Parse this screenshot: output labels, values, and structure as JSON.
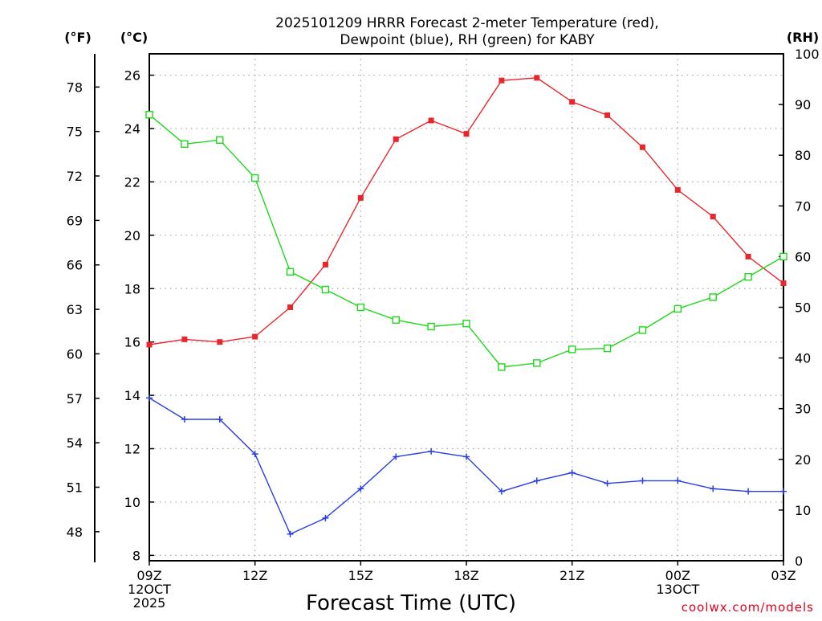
{
  "chart_data": {
    "type": "line",
    "title_line1": "2025101209 HRRR Forecast 2-meter Temperature (red),",
    "title_line2": "Dewpoint (blue), RH (green) for KABY",
    "unit_labels": {
      "fahrenheit": "(°F)",
      "celsius": "(°C)",
      "rh": "(RH)"
    },
    "xlabel": "Forecast Time (UTC)",
    "credit": "coolwx.com/models",
    "x": [
      0,
      1,
      2,
      3,
      4,
      5,
      6,
      7,
      8,
      9,
      10,
      11,
      12,
      13,
      14,
      15,
      16,
      17,
      18
    ],
    "xlim": [
      0,
      18
    ],
    "x_ticks": [
      {
        "x": 0,
        "lines": [
          "09Z",
          "12OCT",
          "2025"
        ]
      },
      {
        "x": 3,
        "lines": [
          "12Z"
        ]
      },
      {
        "x": 6,
        "lines": [
          "15Z"
        ]
      },
      {
        "x": 9,
        "lines": [
          "18Z"
        ]
      },
      {
        "x": 12,
        "lines": [
          "21Z"
        ]
      },
      {
        "x": 15,
        "lines": [
          "00Z",
          "13OCT"
        ]
      },
      {
        "x": 18,
        "lines": [
          "03Z"
        ]
      }
    ],
    "celsius_axis": {
      "ylim": [
        7.8,
        26.8
      ],
      "ticks": [
        8,
        10,
        12,
        14,
        16,
        18,
        20,
        22,
        24,
        26
      ]
    },
    "fahrenheit_axis": {
      "ticks": [
        48,
        51,
        54,
        57,
        60,
        63,
        66,
        69,
        72,
        75,
        78
      ]
    },
    "rh_axis": {
      "ylim": [
        0,
        100
      ],
      "ticks": [
        0,
        10,
        20,
        30,
        40,
        50,
        60,
        70,
        80,
        90,
        100
      ]
    },
    "series": [
      {
        "name": "2-meter Temperature",
        "color": "#e8262b",
        "axis": "celsius",
        "marker": "filled-square",
        "values": [
          15.9,
          16.1,
          16.0,
          16.2,
          17.3,
          18.9,
          21.4,
          23.6,
          24.3,
          23.8,
          25.8,
          25.9,
          25.0,
          24.5,
          23.3,
          21.7,
          20.7,
          19.2,
          18.2
        ]
      },
      {
        "name": "Dewpoint",
        "color": "#2a3fe0",
        "axis": "celsius",
        "marker": "plus",
        "values": [
          13.9,
          13.1,
          13.1,
          11.8,
          8.8,
          9.4,
          10.5,
          11.7,
          11.9,
          11.7,
          10.4,
          10.8,
          11.1,
          10.7,
          10.8,
          10.8,
          10.5,
          10.4,
          10.4
        ]
      },
      {
        "name": "Relative Humidity",
        "color": "#1ed81a",
        "axis": "rh",
        "marker": "open-square",
        "values": [
          88,
          82.2,
          83,
          75.5,
          57,
          53.5,
          50,
          47.5,
          46.2,
          46.8,
          38.2,
          39,
          41.7,
          41.9,
          45.5,
          49.7,
          52,
          56,
          60
        ]
      }
    ]
  }
}
